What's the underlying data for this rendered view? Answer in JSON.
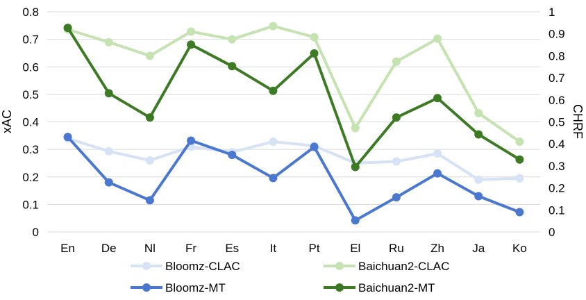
{
  "chart_data": {
    "type": "line",
    "categories": [
      "En",
      "De",
      "Nl",
      "Fr",
      "Es",
      "It",
      "Pt",
      "El",
      "Ru",
      "Zh",
      "Ja",
      "Ko"
    ],
    "ylabel": "xAC",
    "y2label": "CHRF",
    "ylim": [
      0,
      0.8
    ],
    "y2lim": [
      0,
      1
    ],
    "yticks": [
      "0",
      "0.1",
      "0.2",
      "0.3",
      "0.4",
      "0.5",
      "0.6",
      "0.7",
      "0.8"
    ],
    "y2ticks": [
      "0",
      "0.1",
      "0.2",
      "0.3",
      "0.4",
      "0.5",
      "0.6",
      "0.7",
      "0.8",
      "0.9",
      "1"
    ],
    "grid": true,
    "legend_position": "bottom",
    "series": [
      {
        "name": "Bloomz-CLAC",
        "axis": "left",
        "color": "#d6e2f5",
        "values": [
          0.34,
          0.293,
          0.26,
          0.31,
          0.29,
          0.328,
          0.313,
          0.25,
          0.256,
          0.285,
          0.19,
          0.195
        ]
      },
      {
        "name": "Bloomz-MT",
        "axis": "left",
        "color": "#4a78d0",
        "values": [
          0.345,
          0.18,
          0.115,
          0.332,
          0.28,
          0.196,
          0.309,
          0.042,
          0.126,
          0.213,
          0.13,
          0.072
        ]
      },
      {
        "name": "Baichuan2-CLAC",
        "axis": "right",
        "color": "#c5e3b0",
        "values": [
          0.92,
          0.862,
          0.8,
          0.91,
          0.875,
          0.935,
          0.885,
          0.472,
          0.774,
          0.878,
          0.54,
          0.41
        ]
      },
      {
        "name": "Baichuan2-MT",
        "axis": "right",
        "color": "#3c7a24",
        "values": [
          0.927,
          0.63,
          0.52,
          0.851,
          0.753,
          0.641,
          0.811,
          0.295,
          0.52,
          0.608,
          0.443,
          0.329
        ]
      }
    ]
  }
}
